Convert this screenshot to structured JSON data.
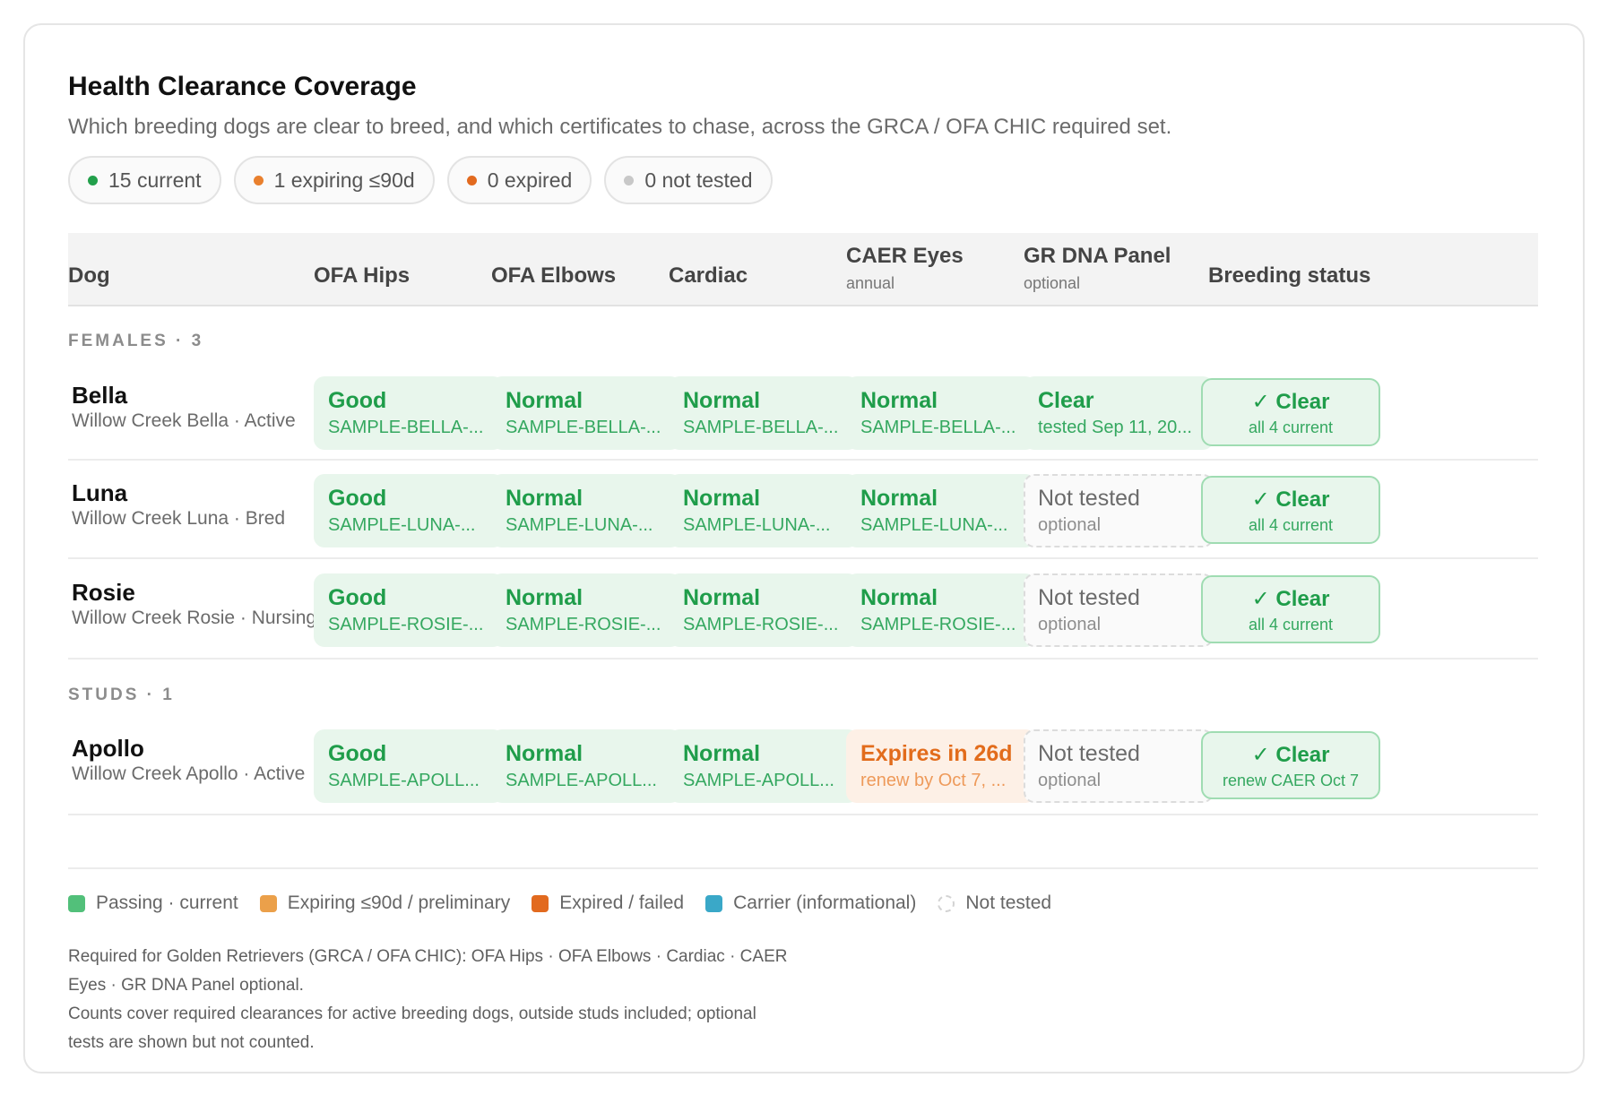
{
  "header": {
    "title": "Health Clearance Coverage",
    "subtitle": "Which breeding dogs are clear to breed, and which certificates to chase, across the GRCA / OFA CHIC required set."
  },
  "summary": [
    {
      "label": "15 current",
      "color": "#22a04b"
    },
    {
      "label": "1 expiring ≤90d",
      "color": "#e9802e"
    },
    {
      "label": "0 expired",
      "color": "#e26a1f"
    },
    {
      "label": "0 not tested",
      "color": "#c8c8c8"
    }
  ],
  "columns": {
    "dog": "Dog",
    "hips": "OFA Hips",
    "elbows": "OFA Elbows",
    "cardiac": "Cardiac",
    "eyes": "CAER Eyes",
    "eyes_sub": "annual",
    "dna": "GR DNA Panel",
    "dna_sub": "optional",
    "status": "Breeding status"
  },
  "groups": {
    "females": "FEMALES · 3",
    "studs": "STUDS · 1"
  },
  "dogs": [
    {
      "name": "Bella",
      "sub": "Willow Creek Bella · Active",
      "cells": [
        {
          "main": "Good",
          "sub": "SAMPLE-BELLA-..."
        },
        {
          "main": "Normal",
          "sub": "SAMPLE-BELLA-..."
        },
        {
          "main": "Normal",
          "sub": "SAMPLE-BELLA-..."
        },
        {
          "main": "Normal",
          "sub": "SAMPLE-BELLA-..."
        },
        {
          "main": "Clear",
          "sub": "tested Sep 11, 20..."
        }
      ],
      "status": {
        "main": "✓ Clear",
        "sub": "all 4 current"
      }
    },
    {
      "name": "Luna",
      "sub": "Willow Creek Luna · Bred",
      "cells": [
        {
          "main": "Good",
          "sub": "SAMPLE-LUNA-..."
        },
        {
          "main": "Normal",
          "sub": "SAMPLE-LUNA-..."
        },
        {
          "main": "Normal",
          "sub": "SAMPLE-LUNA-..."
        },
        {
          "main": "Normal",
          "sub": "SAMPLE-LUNA-..."
        },
        {
          "main": "Not tested",
          "sub": "optional"
        }
      ],
      "status": {
        "main": "✓ Clear",
        "sub": "all 4 current"
      }
    },
    {
      "name": "Rosie",
      "sub": "Willow Creek Rosie · Nursing",
      "cells": [
        {
          "main": "Good",
          "sub": "SAMPLE-ROSIE-..."
        },
        {
          "main": "Normal",
          "sub": "SAMPLE-ROSIE-..."
        },
        {
          "main": "Normal",
          "sub": "SAMPLE-ROSIE-..."
        },
        {
          "main": "Normal",
          "sub": "SAMPLE-ROSIE-..."
        },
        {
          "main": "Not tested",
          "sub": "optional"
        }
      ],
      "status": {
        "main": "✓ Clear",
        "sub": "all 4 current"
      }
    },
    {
      "name": "Apollo",
      "sub": "Willow Creek Apollo · Active",
      "cells": [
        {
          "main": "Good",
          "sub": "SAMPLE-APOLL..."
        },
        {
          "main": "Normal",
          "sub": "SAMPLE-APOLL..."
        },
        {
          "main": "Normal",
          "sub": "SAMPLE-APOLL..."
        },
        {
          "main": "Expires in 26d",
          "sub": "renew by Oct 7, ..."
        },
        {
          "main": "Not tested",
          "sub": "optional"
        }
      ],
      "status": {
        "main": "✓ Clear",
        "sub": "renew CAER Oct 7"
      }
    }
  ],
  "legend": [
    {
      "label": "Passing · current",
      "color": "#52c07a"
    },
    {
      "label": "Expiring ≤90d / preliminary",
      "color": "#eba04a"
    },
    {
      "label": "Expired / failed",
      "color": "#e26a1f"
    },
    {
      "label": "Carrier (informational)",
      "color": "#3aa8c8"
    },
    {
      "label": "Not tested",
      "color": "#d3d3d3"
    }
  ],
  "notes": {
    "line1": "Required for Golden Retrievers (GRCA / OFA CHIC): OFA Hips · OFA Elbows · Cardiac · CAER",
    "line2": "Eyes · GR DNA Panel optional.",
    "line3": "Counts cover required clearances for active breeding dogs, outside studs included; optional",
    "line4": "tests are shown but not counted."
  }
}
